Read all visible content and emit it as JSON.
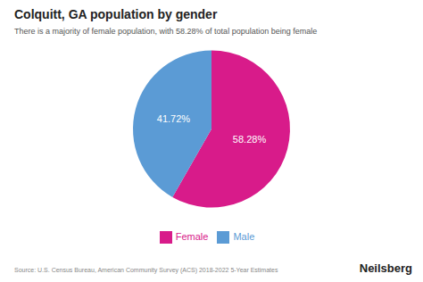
{
  "chart_data": {
    "type": "pie",
    "title": "Colquitt, GA population by gender",
    "subtitle": "There is a majority of female population, with 58.28% of total population being female",
    "categories": [
      "Female",
      "Male"
    ],
    "values": [
      58.28,
      41.72
    ],
    "value_labels": [
      "58.28%",
      "41.72%"
    ],
    "colors": [
      "#D81B8A",
      "#5B9BD5"
    ],
    "data_labels": true,
    "legend": "bottom",
    "annotations": [
      "Source: U.S. Census Bureau, American Community Survey (ACS) 2018-2022 5-Year Estimates",
      "Neilsberg"
    ]
  }
}
